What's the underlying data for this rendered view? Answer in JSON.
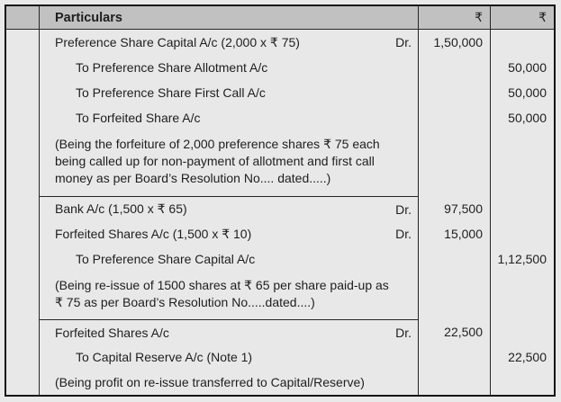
{
  "colors": {
    "page_background": "#eae9e9",
    "header_background": "#c1c1c1",
    "body_background": "#e9e8e8",
    "border": "#262626",
    "text": "#1e1e1e"
  },
  "table": {
    "columns": {
      "particulars": "Particulars",
      "debit_symbol": "₹",
      "credit_symbol": "₹"
    },
    "entries": [
      {
        "lines": [
          {
            "particulars": "Preference Share Capital A/c (2,000 x ₹ 75)",
            "dr_label": "Dr.",
            "debit": "1,50,000",
            "credit": ""
          },
          {
            "particulars": "To Preference Share Allotment A/c",
            "dr_label": "",
            "debit": "",
            "credit": "50,000"
          },
          {
            "particulars": "To Preference Share First Call A/c",
            "dr_label": "",
            "debit": "",
            "credit": "50,000"
          },
          {
            "particulars": "To Forfeited Share A/c",
            "dr_label": "",
            "debit": "",
            "credit": "50,000"
          }
        ],
        "narration_lines": [
          "(Being the forfeiture of 2,000 preference shares ₹ 75 each",
          "being called up for non-payment of allotment and first call",
          "money as per Board’s Resolution No.... dated.....)"
        ]
      },
      {
        "lines": [
          {
            "particulars": "Bank A/c (1,500 x ₹ 65)",
            "dr_label": "Dr.",
            "debit": "97,500",
            "credit": ""
          },
          {
            "particulars": "Forfeited Shares A/c (1,500 x ₹ 10)",
            "dr_label": "Dr.",
            "debit": "15,000",
            "credit": ""
          },
          {
            "particulars": "To Preference Share Capital A/c",
            "dr_label": "",
            "debit": "",
            "credit": "1,12,500"
          }
        ],
        "narration_lines": [
          "(Being re-issue of 1500 shares at ₹ 65 per share paid-up as",
          "₹ 75 as per Board’s Resolution No.....dated....)"
        ]
      },
      {
        "lines": [
          {
            "particulars": "Forfeited Shares A/c",
            "dr_label": "Dr.",
            "debit": "22,500",
            "credit": ""
          },
          {
            "particulars": "To Capital Reserve A/c (Note 1)",
            "dr_label": "",
            "debit": "",
            "credit": "22,500"
          }
        ],
        "narration_lines": [
          "(Being profit on re-issue transferred to Capital/Reserve)"
        ]
      }
    ]
  }
}
